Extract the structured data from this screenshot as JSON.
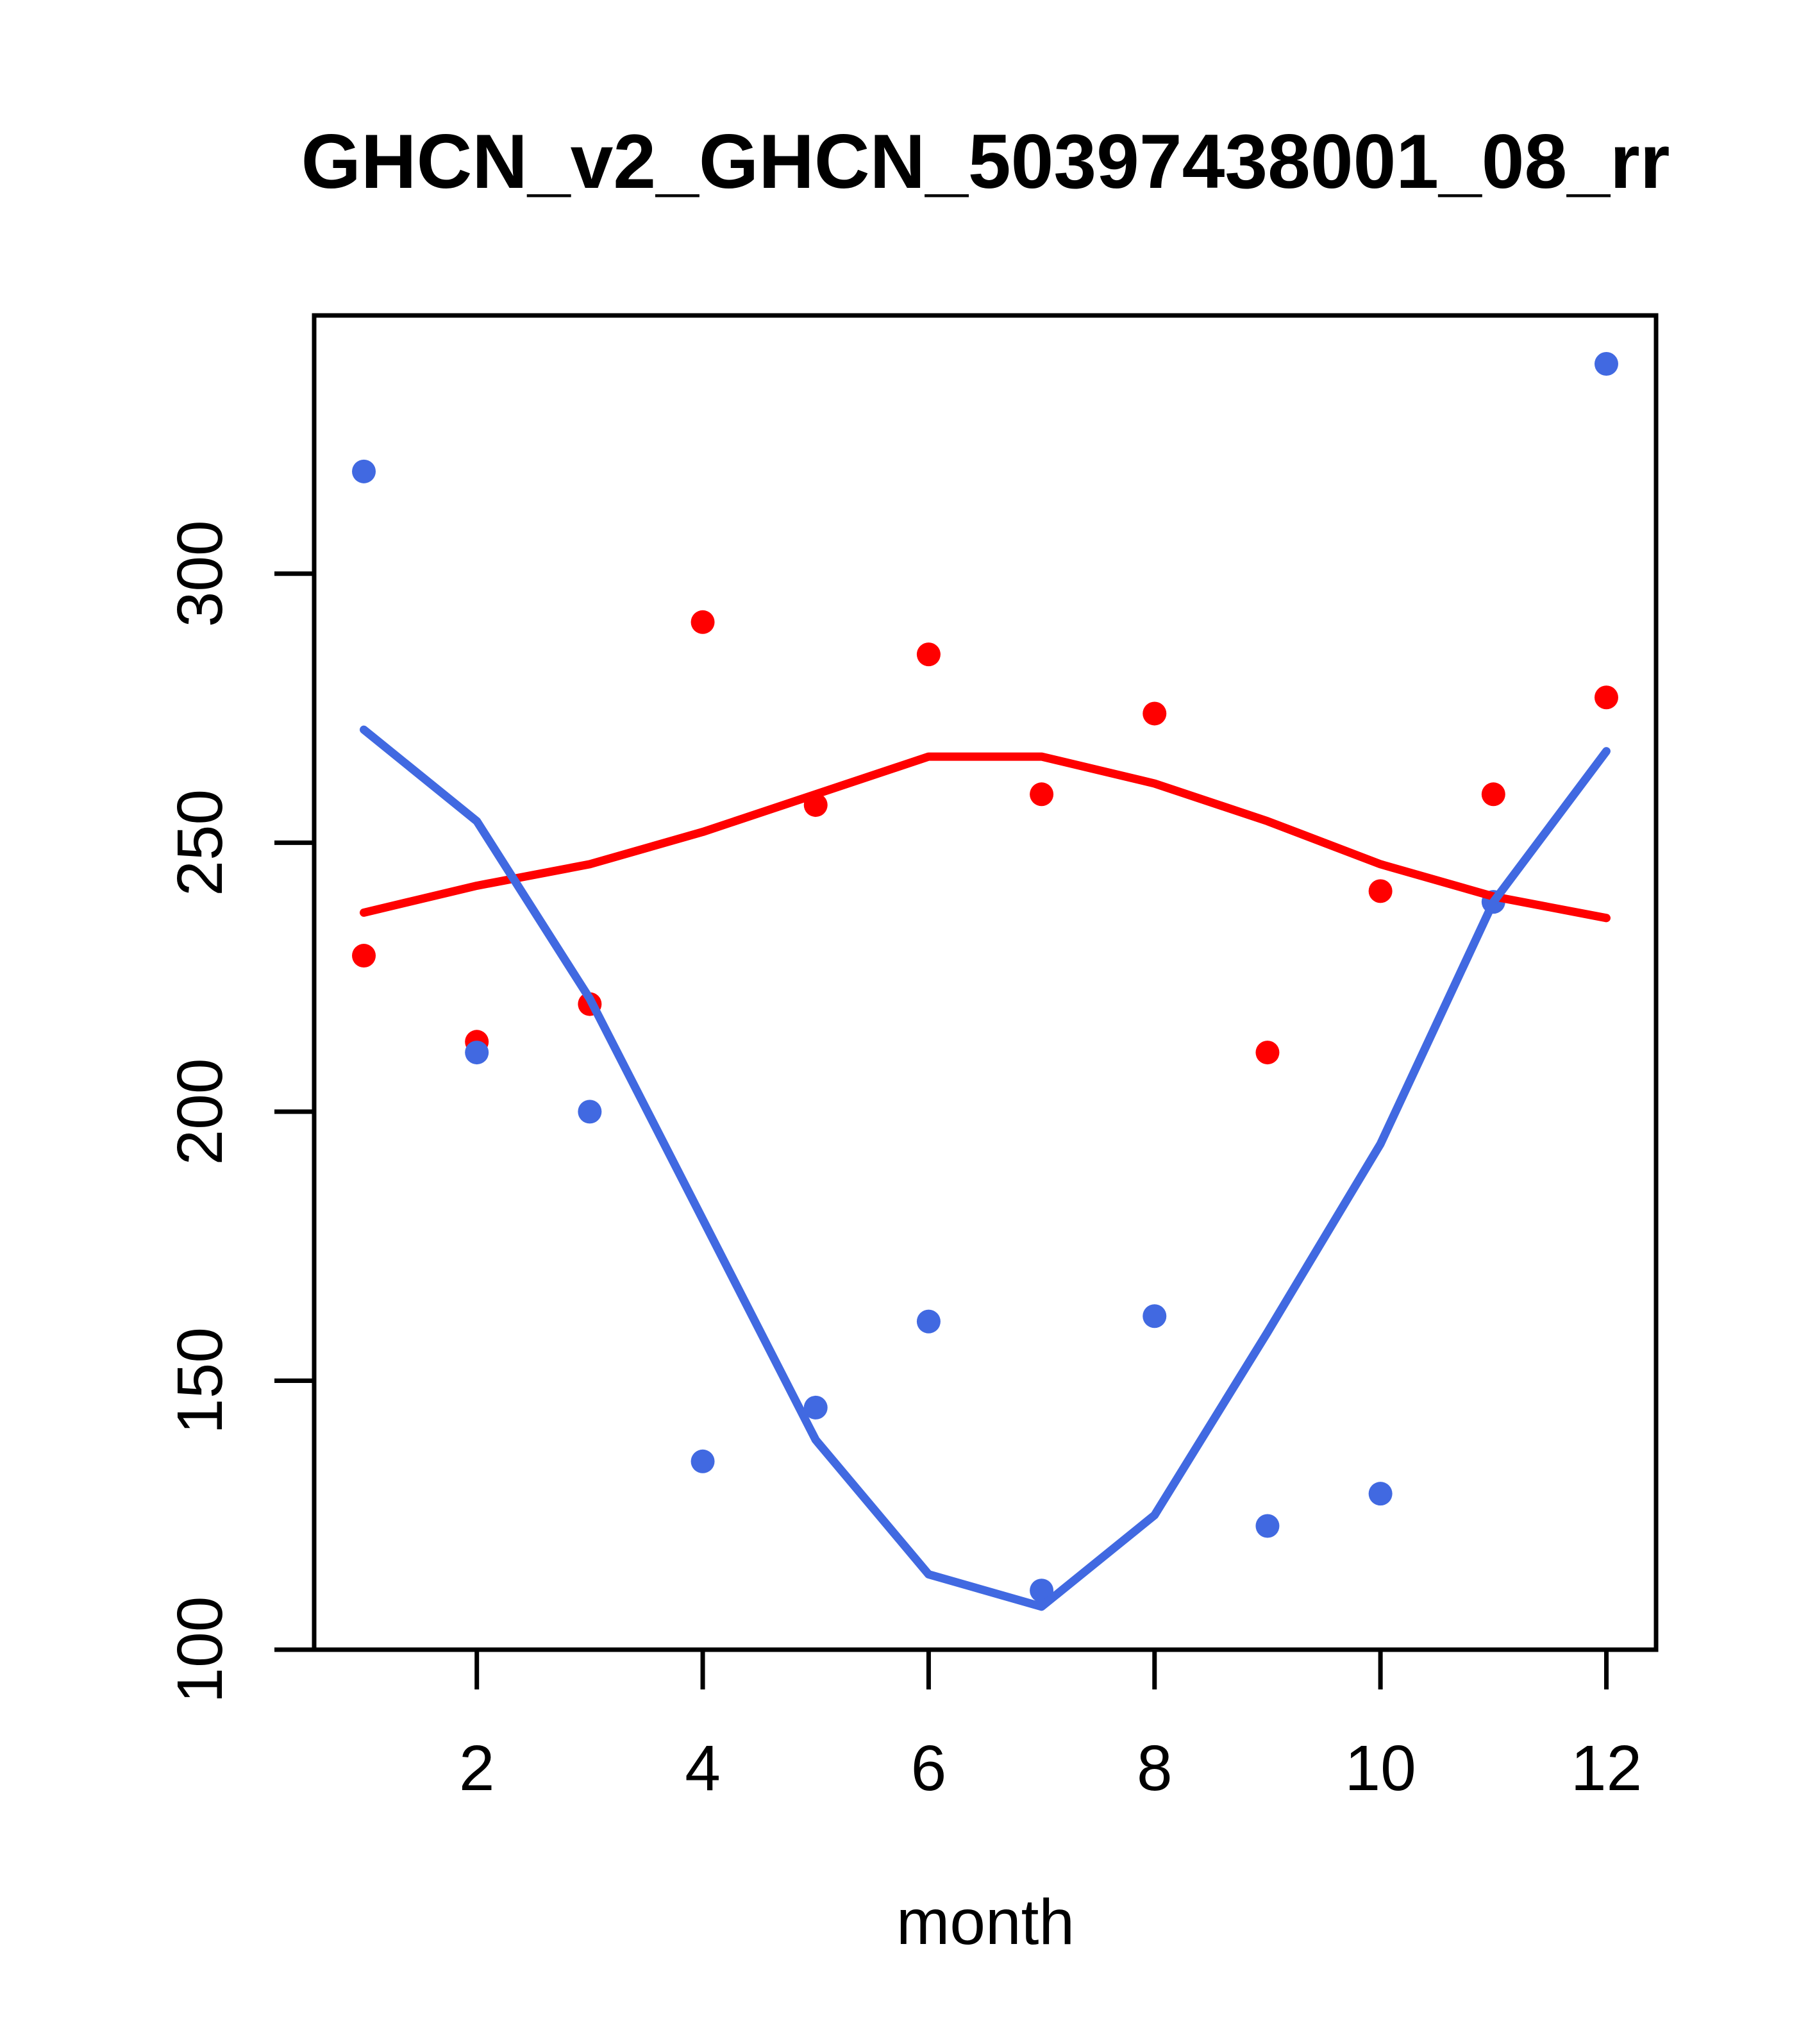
{
  "title": "GHCN_v2_GHCN_50397438001_08_rr",
  "chart_data": {
    "type": "scatter",
    "title": "GHCN_v2_GHCN_50397438001_08_rr",
    "xlabel": "month",
    "ylabel": "",
    "x": [
      1,
      2,
      3,
      4,
      5,
      6,
      7,
      8,
      9,
      10,
      11,
      12
    ],
    "xticks": [
      "2",
      "4",
      "6",
      "8",
      "10",
      "12"
    ],
    "xtick_values": [
      2,
      4,
      6,
      8,
      10,
      12
    ],
    "yticks": [
      "100",
      "150",
      "200",
      "250",
      "300"
    ],
    "ytick_values": [
      100,
      150,
      200,
      250,
      300
    ],
    "xlim": [
      0.56,
      12.44
    ],
    "ylim": [
      100,
      348
    ],
    "grid": false,
    "legend": null,
    "series": [
      {
        "name": "red-points",
        "kind": "points",
        "color": "#FF0000",
        "values": [
          229,
          213,
          220,
          291,
          257,
          285,
          259,
          274,
          211,
          241,
          259,
          277
        ]
      },
      {
        "name": "blue-points",
        "kind": "points",
        "color": "#4169E1",
        "values": [
          319,
          211,
          200,
          135,
          145,
          161,
          111,
          162,
          123,
          129,
          239,
          339
        ]
      },
      {
        "name": "red-smooth-line",
        "kind": "line",
        "color": "#FF0000",
        "values": [
          237,
          242,
          246,
          252,
          259,
          266,
          266,
          261,
          254,
          246,
          240,
          236
        ]
      },
      {
        "name": "blue-smooth-line",
        "kind": "line",
        "color": "#4169E1",
        "values": [
          271,
          254,
          221,
          180,
          139,
          114,
          108,
          125,
          159,
          194,
          239,
          267
        ]
      }
    ]
  }
}
